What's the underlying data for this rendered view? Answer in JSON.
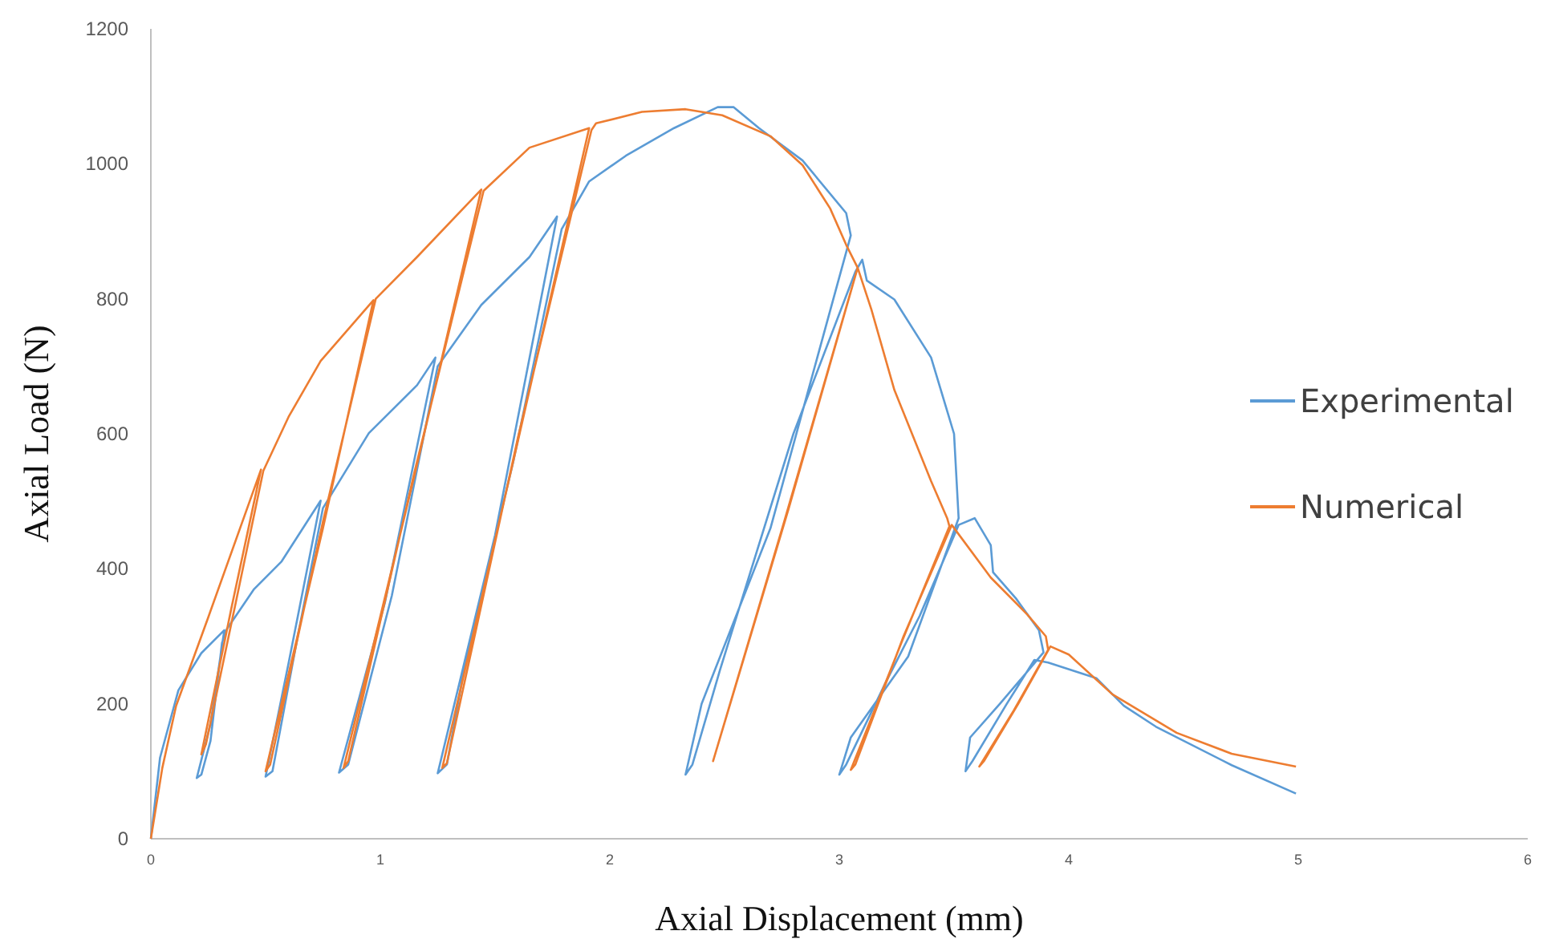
{
  "chart_data": {
    "type": "line",
    "xlabel": "Axial Displacement (mm)",
    "ylabel": "Axial Load (N)",
    "xlim": [
      0,
      6
    ],
    "xticks": [
      0,
      1,
      2,
      3,
      4,
      5,
      6
    ],
    "ylim": [
      0,
      1200
    ],
    "yticks": [
      0,
      200,
      400,
      600,
      800,
      1000,
      1200
    ],
    "grid": false,
    "legend": "right",
    "marker": "none",
    "line_style": "solid",
    "series": [
      {
        "name": "Experimental",
        "color": "#5b9bd5",
        "x": [
          0,
          0.04,
          0.12,
          0.22,
          0.32,
          0.26,
          0.2,
          0.22,
          0.26,
          0.31,
          0.33,
          0.45,
          0.57,
          0.74,
          0.6,
          0.5,
          0.53,
          0.64,
          0.75,
          0.95,
          1.16,
          1.24,
          1.02,
          0.82,
          0.86,
          1.05,
          1.25,
          1.44,
          1.65,
          1.77,
          1.5,
          1.25,
          1.29,
          1.37,
          1.58,
          1.79,
          1.91,
          2.07,
          2.28,
          2.47,
          2.54,
          2.65,
          2.84,
          3.03,
          3.05,
          2.7,
          2.4,
          2.33,
          2.36,
          2.48,
          2.8,
          3.07,
          3.1,
          3.12,
          3.24,
          3.4,
          3.5,
          3.52,
          3.3,
          3.05,
          3.0,
          3.03,
          3.2,
          3.35,
          3.52,
          3.59,
          3.66,
          3.67,
          3.77,
          3.87,
          3.89,
          3.7,
          3.57,
          3.55,
          3.58,
          3.73,
          3.85,
          3.91,
          4.12,
          4.24,
          4.38,
          4.71,
          4.99
        ],
        "values": [
          0,
          120,
          220,
          275,
          309,
          170,
          90,
          95,
          145,
          290,
          310,
          370,
          411,
          501,
          260,
          92,
          100,
          300,
          490,
          601,
          672,
          713,
          350,
          98,
          110,
          360,
          700,
          791,
          862,
          922,
          450,
          97,
          110,
          260,
          560,
          903,
          974,
          1012,
          1053,
          1084,
          1084,
          1053,
          1005,
          927,
          894,
          460,
          200,
          95,
          110,
          250,
          600,
          840,
          858,
          827,
          799,
          713,
          600,
          475,
          270,
          150,
          95,
          110,
          230,
          330,
          465,
          475,
          435,
          395,
          356,
          309,
          276,
          200,
          150,
          100,
          115,
          200,
          265,
          261,
          238,
          197,
          166,
          109,
          67
        ]
      },
      {
        "name": "Numerical",
        "color": "#ed7d31",
        "x": [
          0,
          0.05,
          0.11,
          0.25,
          0.48,
          0.35,
          0.22,
          0.24,
          0.37,
          0.49,
          0.6,
          0.74,
          0.97,
          0.75,
          0.5,
          0.52,
          0.75,
          0.98,
          1.16,
          1.44,
          1.15,
          0.84,
          0.86,
          1.15,
          1.45,
          1.65,
          1.91,
          1.6,
          1.27,
          1.29,
          1.6,
          1.92,
          1.94,
          2.14,
          2.33,
          2.49,
          2.7,
          2.84,
          2.96,
          3.03,
          3.08,
          2.76,
          2.45,
          2.78,
          3.08,
          3.14,
          3.24,
          3.4,
          3.47,
          3.48,
          3.27,
          3.05,
          3.07,
          3.28,
          3.49,
          3.66,
          3.82,
          3.9,
          3.91,
          3.76,
          3.61,
          3.63,
          3.78,
          3.92,
          4.0,
          4.19,
          4.47,
          4.71,
          4.99
        ],
        "values": [
          0,
          105,
          197,
          328,
          547,
          340,
          125,
          140,
          350,
          545,
          625,
          708,
          798,
          460,
          100,
          110,
          470,
          800,
          862,
          962,
          540,
          105,
          115,
          545,
          960,
          1024,
          1053,
          590,
          105,
          112,
          595,
          1050,
          1060,
          1077,
          1081,
          1072,
          1041,
          998,
          934,
          880,
          846,
          470,
          115,
          490,
          846,
          784,
          665,
          530,
          475,
          463,
          290,
          102,
          110,
          300,
          465,
          387,
          332,
          300,
          280,
          190,
          107,
          115,
          200,
          285,
          273,
          214,
          157,
          126,
          107
        ]
      }
    ]
  }
}
